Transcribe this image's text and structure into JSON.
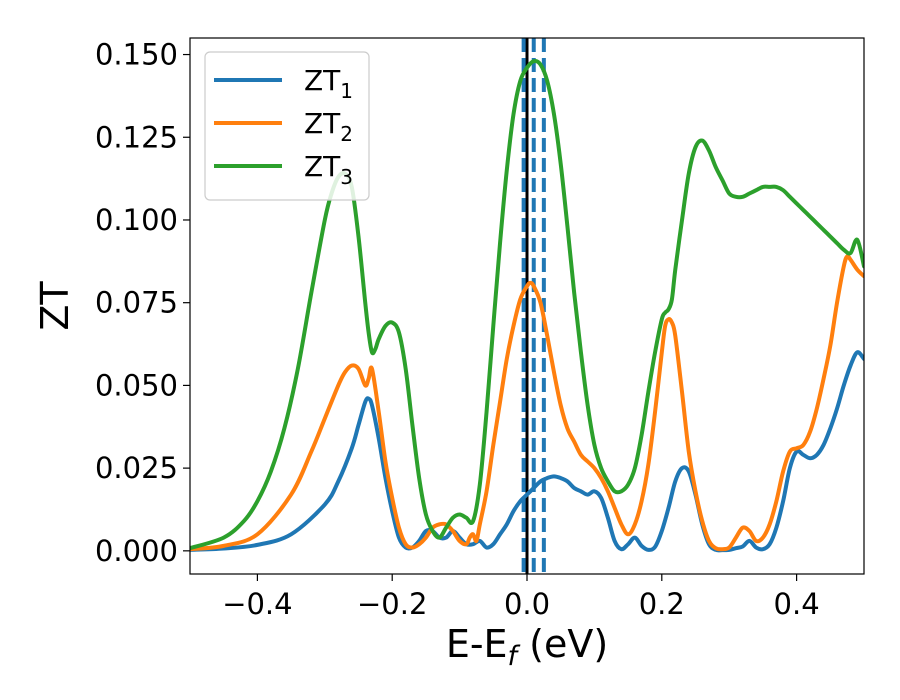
{
  "chart_data": {
    "type": "line",
    "xlabel": "E-E",
    "xlabel_sub": "f",
    "xlabel_unit": " (eV)",
    "ylabel": "ZT",
    "xlim": [
      -0.5,
      0.5
    ],
    "ylim": [
      -0.007,
      0.155
    ],
    "x_ticks": [
      -0.4,
      -0.2,
      0.0,
      0.2,
      0.4
    ],
    "x_tick_labels": [
      "−0.4",
      "−0.2",
      "0.0",
      "0.2",
      "0.4"
    ],
    "y_ticks": [
      0.0,
      0.025,
      0.05,
      0.075,
      0.1,
      0.125,
      0.15
    ],
    "y_tick_labels": [
      "0.000",
      "0.025",
      "0.050",
      "0.075",
      "0.100",
      "0.125",
      "0.150"
    ],
    "grid": false,
    "legend_position": "top-left",
    "vertical_lines": [
      {
        "x": 0.0,
        "style": "solid",
        "color": "#000000"
      },
      {
        "x": -0.005,
        "style": "dashed",
        "color": "#1f77b4"
      },
      {
        "x": 0.01,
        "style": "dashed",
        "color": "#1f77b4"
      },
      {
        "x": 0.025,
        "style": "dashed",
        "color": "#1f77b4"
      }
    ],
    "series": [
      {
        "name": "ZT",
        "name_sub": "1",
        "color": "#1f77b4",
        "x": [
          -0.5,
          -0.45,
          -0.4,
          -0.35,
          -0.3,
          -0.28,
          -0.26,
          -0.25,
          -0.24,
          -0.235,
          -0.23,
          -0.22,
          -0.21,
          -0.2,
          -0.19,
          -0.18,
          -0.17,
          -0.16,
          -0.15,
          -0.14,
          -0.13,
          -0.12,
          -0.11,
          -0.1,
          -0.09,
          -0.08,
          -0.07,
          -0.06,
          -0.05,
          -0.04,
          -0.03,
          -0.02,
          -0.01,
          0.0,
          0.01,
          0.02,
          0.03,
          0.04,
          0.05,
          0.06,
          0.07,
          0.08,
          0.09,
          0.1,
          0.11,
          0.12,
          0.13,
          0.14,
          0.15,
          0.16,
          0.17,
          0.18,
          0.19,
          0.2,
          0.21,
          0.22,
          0.23,
          0.24,
          0.25,
          0.26,
          0.27,
          0.28,
          0.29,
          0.3,
          0.31,
          0.32,
          0.33,
          0.34,
          0.35,
          0.36,
          0.37,
          0.38,
          0.39,
          0.4,
          0.41,
          0.42,
          0.43,
          0.44,
          0.45,
          0.46,
          0.47,
          0.48,
          0.49,
          0.5
        ],
        "y": [
          0.0003,
          0.0007,
          0.0018,
          0.005,
          0.014,
          0.021,
          0.031,
          0.038,
          0.045,
          0.046,
          0.044,
          0.034,
          0.022,
          0.012,
          0.004,
          0.001,
          0.001,
          0.003,
          0.006,
          0.006,
          0.004,
          0.004,
          0.006,
          0.004,
          0.002,
          0.002,
          0.003,
          0.001,
          0.002,
          0.005,
          0.008,
          0.012,
          0.015,
          0.017,
          0.019,
          0.021,
          0.022,
          0.0225,
          0.022,
          0.021,
          0.019,
          0.018,
          0.017,
          0.018,
          0.016,
          0.01,
          0.003,
          0.0005,
          0.002,
          0.004,
          0.0015,
          0.0003,
          0.0012,
          0.006,
          0.013,
          0.021,
          0.025,
          0.024,
          0.017,
          0.008,
          0.002,
          0.0003,
          0.0002,
          0.0003,
          0.0008,
          0.0013,
          0.003,
          0.001,
          0.0005,
          0.002,
          0.007,
          0.015,
          0.025,
          0.03,
          0.029,
          0.028,
          0.029,
          0.032,
          0.037,
          0.043,
          0.05,
          0.056,
          0.06,
          0.058
        ]
      },
      {
        "name": "ZT",
        "name_sub": "2",
        "color": "#ff7f0e",
        "x": [
          -0.5,
          -0.45,
          -0.4,
          -0.35,
          -0.32,
          -0.3,
          -0.28,
          -0.27,
          -0.26,
          -0.25,
          -0.24,
          -0.235,
          -0.23,
          -0.22,
          -0.21,
          -0.2,
          -0.19,
          -0.18,
          -0.17,
          -0.16,
          -0.15,
          -0.14,
          -0.13,
          -0.12,
          -0.11,
          -0.1,
          -0.09,
          -0.085,
          -0.08,
          -0.075,
          -0.07,
          -0.06,
          -0.05,
          -0.04,
          -0.03,
          -0.02,
          -0.01,
          0.0,
          0.005,
          0.01,
          0.02,
          0.03,
          0.04,
          0.05,
          0.06,
          0.07,
          0.08,
          0.09,
          0.1,
          0.11,
          0.12,
          0.13,
          0.14,
          0.15,
          0.16,
          0.17,
          0.18,
          0.19,
          0.2,
          0.205,
          0.21,
          0.215,
          0.22,
          0.23,
          0.24,
          0.25,
          0.26,
          0.27,
          0.28,
          0.29,
          0.3,
          0.31,
          0.32,
          0.33,
          0.34,
          0.35,
          0.36,
          0.37,
          0.38,
          0.39,
          0.4,
          0.41,
          0.42,
          0.43,
          0.44,
          0.45,
          0.46,
          0.47,
          0.475,
          0.48,
          0.49,
          0.5
        ],
        "y": [
          0.0005,
          0.0015,
          0.005,
          0.017,
          0.03,
          0.04,
          0.05,
          0.054,
          0.056,
          0.055,
          0.05,
          0.052,
          0.055,
          0.042,
          0.027,
          0.016,
          0.007,
          0.002,
          0.001,
          0.002,
          0.004,
          0.007,
          0.008,
          0.008,
          0.006,
          0.003,
          0.002,
          0.004,
          0.005,
          0.003,
          0.008,
          0.018,
          0.032,
          0.045,
          0.058,
          0.068,
          0.076,
          0.08,
          0.081,
          0.08,
          0.075,
          0.065,
          0.054,
          0.044,
          0.037,
          0.033,
          0.029,
          0.027,
          0.025,
          0.022,
          0.018,
          0.013,
          0.008,
          0.005,
          0.008,
          0.015,
          0.026,
          0.042,
          0.06,
          0.068,
          0.07,
          0.069,
          0.065,
          0.048,
          0.03,
          0.018,
          0.009,
          0.003,
          0.0008,
          0.0005,
          0.001,
          0.004,
          0.007,
          0.006,
          0.003,
          0.004,
          0.008,
          0.015,
          0.024,
          0.03,
          0.031,
          0.032,
          0.036,
          0.043,
          0.052,
          0.062,
          0.075,
          0.086,
          0.089,
          0.088,
          0.085,
          0.083
        ]
      },
      {
        "name": "ZT",
        "name_sub": "3",
        "color": "#2ca02c",
        "x": [
          -0.5,
          -0.45,
          -0.42,
          -0.4,
          -0.38,
          -0.36,
          -0.34,
          -0.32,
          -0.3,
          -0.29,
          -0.28,
          -0.27,
          -0.26,
          -0.25,
          -0.24,
          -0.235,
          -0.23,
          -0.225,
          -0.22,
          -0.21,
          -0.2,
          -0.19,
          -0.18,
          -0.17,
          -0.16,
          -0.15,
          -0.14,
          -0.13,
          -0.12,
          -0.11,
          -0.1,
          -0.09,
          -0.08,
          -0.07,
          -0.06,
          -0.05,
          -0.04,
          -0.03,
          -0.02,
          -0.01,
          0.0,
          0.01,
          0.02,
          0.03,
          0.04,
          0.05,
          0.06,
          0.07,
          0.08,
          0.09,
          0.1,
          0.11,
          0.12,
          0.13,
          0.14,
          0.15,
          0.16,
          0.17,
          0.18,
          0.19,
          0.2,
          0.205,
          0.21,
          0.215,
          0.22,
          0.23,
          0.24,
          0.25,
          0.26,
          0.27,
          0.28,
          0.29,
          0.3,
          0.31,
          0.32,
          0.33,
          0.34,
          0.35,
          0.36,
          0.37,
          0.38,
          0.39,
          0.4,
          0.41,
          0.42,
          0.43,
          0.44,
          0.45,
          0.46,
          0.47,
          0.48,
          0.49,
          0.5
        ],
        "y": [
          0.0008,
          0.004,
          0.009,
          0.015,
          0.024,
          0.037,
          0.055,
          0.078,
          0.1,
          0.108,
          0.113,
          0.114,
          0.11,
          0.095,
          0.075,
          0.066,
          0.06,
          0.061,
          0.064,
          0.068,
          0.069,
          0.066,
          0.055,
          0.038,
          0.022,
          0.011,
          0.006,
          0.004,
          0.007,
          0.01,
          0.011,
          0.01,
          0.009,
          0.02,
          0.042,
          0.068,
          0.093,
          0.115,
          0.132,
          0.142,
          0.146,
          0.148,
          0.147,
          0.142,
          0.132,
          0.117,
          0.098,
          0.078,
          0.06,
          0.044,
          0.032,
          0.025,
          0.021,
          0.018,
          0.018,
          0.02,
          0.025,
          0.035,
          0.048,
          0.06,
          0.07,
          0.072,
          0.073,
          0.076,
          0.085,
          0.1,
          0.114,
          0.122,
          0.124,
          0.121,
          0.116,
          0.112,
          0.108,
          0.107,
          0.107,
          0.108,
          0.109,
          0.11,
          0.11,
          0.11,
          0.109,
          0.107,
          0.105,
          0.103,
          0.101,
          0.099,
          0.097,
          0.095,
          0.093,
          0.091,
          0.09,
          0.094,
          0.086
        ]
      }
    ]
  }
}
